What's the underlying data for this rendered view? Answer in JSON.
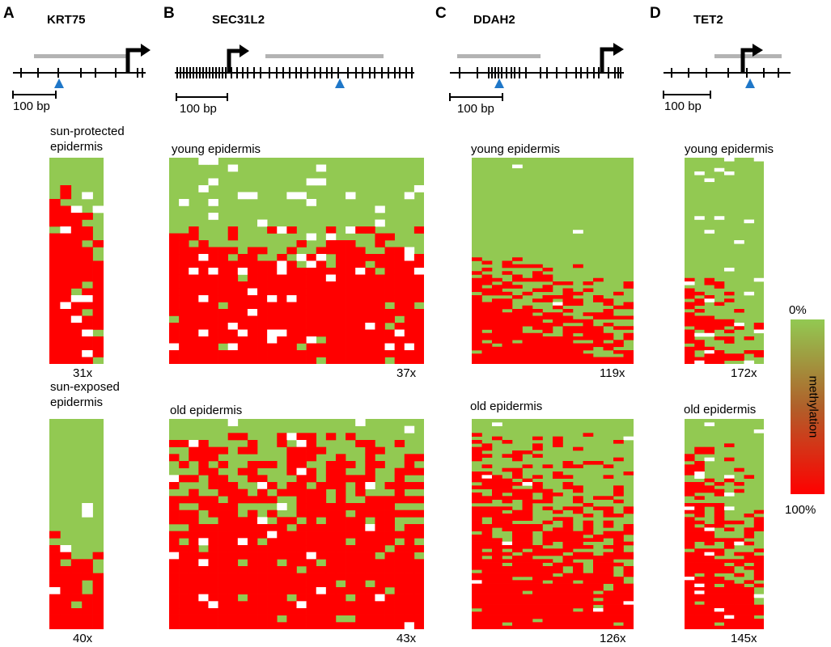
{
  "colors": {
    "methylated": "#ff0000",
    "unmethylated": "#92c952",
    "missing": "#ffffff",
    "site_marker": "#1f77c8"
  },
  "legend": {
    "title": "methylation",
    "top_label": "0%",
    "bottom_label": "100%"
  },
  "panels": [
    {
      "letter": "A",
      "gene": "KRT75",
      "scale": "100 bp",
      "top_label": "sun-protected\nepidermis",
      "top_coverage": "31x",
      "bottom_label": "sun-exposed\nepidermis",
      "bottom_coverage": "40x"
    },
    {
      "letter": "B",
      "gene": "SEC31L2",
      "scale": "100 bp",
      "top_label": "young epidermis",
      "top_coverage": "37x",
      "bottom_label": "old epidermis",
      "bottom_coverage": "43x"
    },
    {
      "letter": "C",
      "gene": "DDAH2",
      "scale": "100 bp",
      "top_label": "young epidermis",
      "top_coverage": "119x",
      "bottom_label": "old epidermis",
      "bottom_coverage": "126x"
    },
    {
      "letter": "D",
      "gene": "TET2",
      "scale": "100 bp",
      "top_label": "young epidermis",
      "top_coverage": "172x",
      "bottom_label": "old epidermis",
      "bottom_coverage": "145x"
    }
  ]
}
